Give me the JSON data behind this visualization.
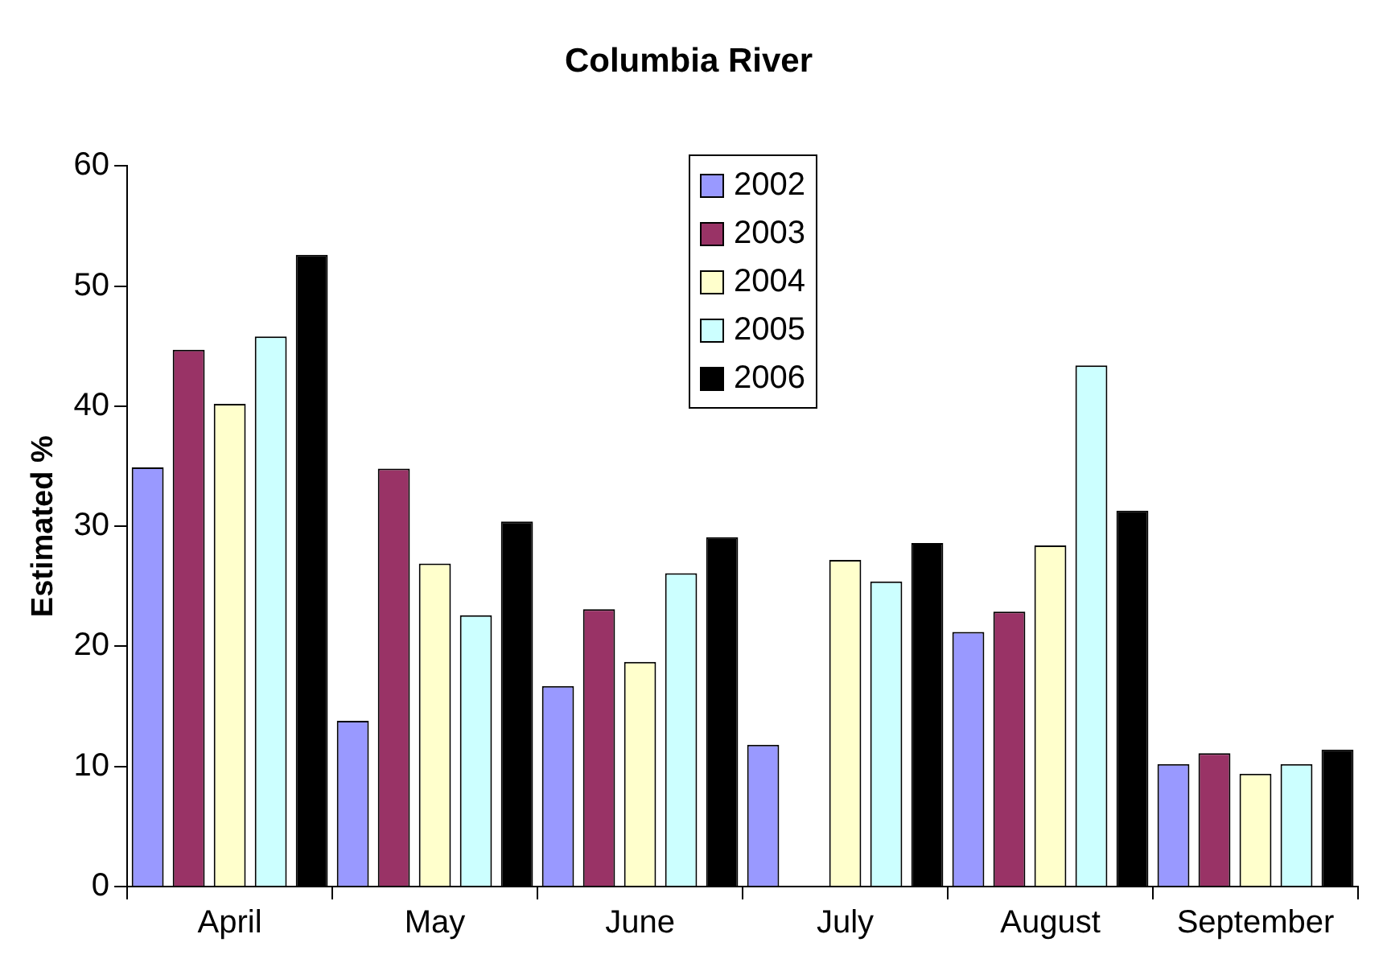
{
  "chart_data": {
    "type": "bar",
    "title": "Columbia River",
    "ylabel": "Estimated %",
    "categories": [
      "April",
      "May",
      "June",
      "July",
      "August",
      "September"
    ],
    "series": [
      {
        "name": "2002",
        "color": "#9999ff",
        "values": [
          34.9,
          13.8,
          16.7,
          11.8,
          21.2,
          10.2
        ]
      },
      {
        "name": "2003",
        "color": "#993366",
        "values": [
          44.7,
          34.8,
          23.1,
          null,
          22.9,
          11.1
        ]
      },
      {
        "name": "2004",
        "color": "#ffffcc",
        "values": [
          40.2,
          26.9,
          18.7,
          27.2,
          28.4,
          9.4
        ]
      },
      {
        "name": "2005",
        "color": "#ccffff",
        "values": [
          45.8,
          22.6,
          26.1,
          25.4,
          43.4,
          10.2
        ]
      },
      {
        "name": "2006",
        "color": "#000000",
        "values": [
          52.6,
          30.4,
          29.1,
          28.6,
          31.3,
          11.4
        ]
      }
    ],
    "ylim": [
      0,
      60
    ],
    "yticks": [
      0,
      10,
      20,
      30,
      40,
      50,
      60
    ],
    "grid": false,
    "legend": "top"
  }
}
